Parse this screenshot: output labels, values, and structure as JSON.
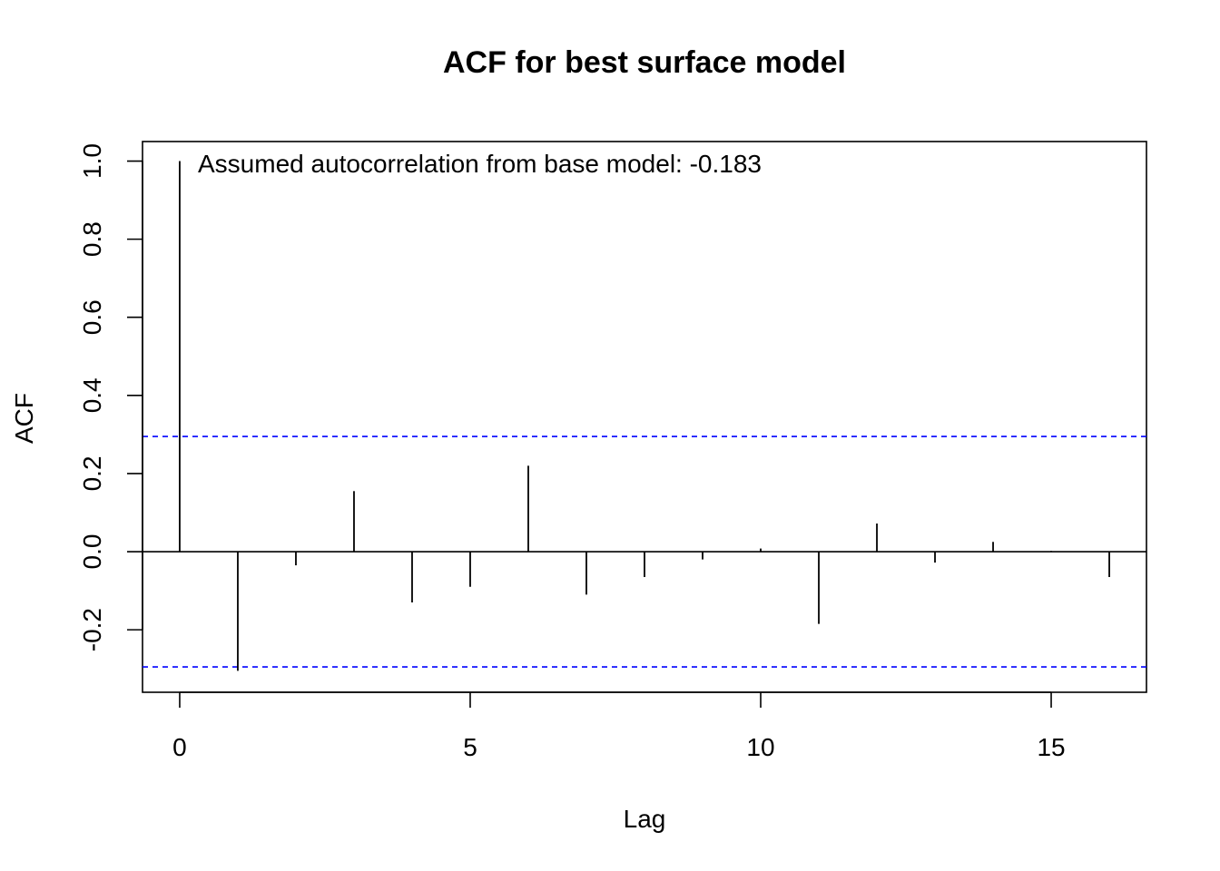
{
  "chart_data": {
    "type": "bar",
    "title": "ACF for best surface model",
    "xlabel": "Lag",
    "ylabel": "ACF",
    "x": [
      0,
      1,
      2,
      3,
      4,
      5,
      6,
      7,
      8,
      9,
      10,
      11,
      12,
      13,
      14,
      15,
      16
    ],
    "values": [
      1.0,
      -0.305,
      -0.035,
      0.155,
      -0.13,
      -0.09,
      0.22,
      -0.11,
      -0.065,
      -0.02,
      0.008,
      -0.185,
      0.072,
      -0.028,
      0.025,
      0.002,
      -0.065
    ],
    "xlim": [
      -0.64,
      16.64
    ],
    "ylim": [
      -0.36,
      1.05
    ],
    "x_ticks": [
      0,
      5,
      10,
      15
    ],
    "x_tick_labels": [
      "0",
      "5",
      "10",
      "15"
    ],
    "y_ticks": [
      -0.2,
      0.0,
      0.2,
      0.4,
      0.6,
      0.8,
      1.0
    ],
    "y_tick_labels": [
      "-0.2",
      "0.0",
      "0.2",
      "0.4",
      "0.6",
      "0.8",
      "1.0"
    ],
    "confidence_bounds": [
      0.295,
      -0.295
    ],
    "confidence_color": "#0000ff",
    "zero_line": true,
    "grid": false,
    "annotation": "Assumed autocorrelation from base model: -0.183"
  }
}
